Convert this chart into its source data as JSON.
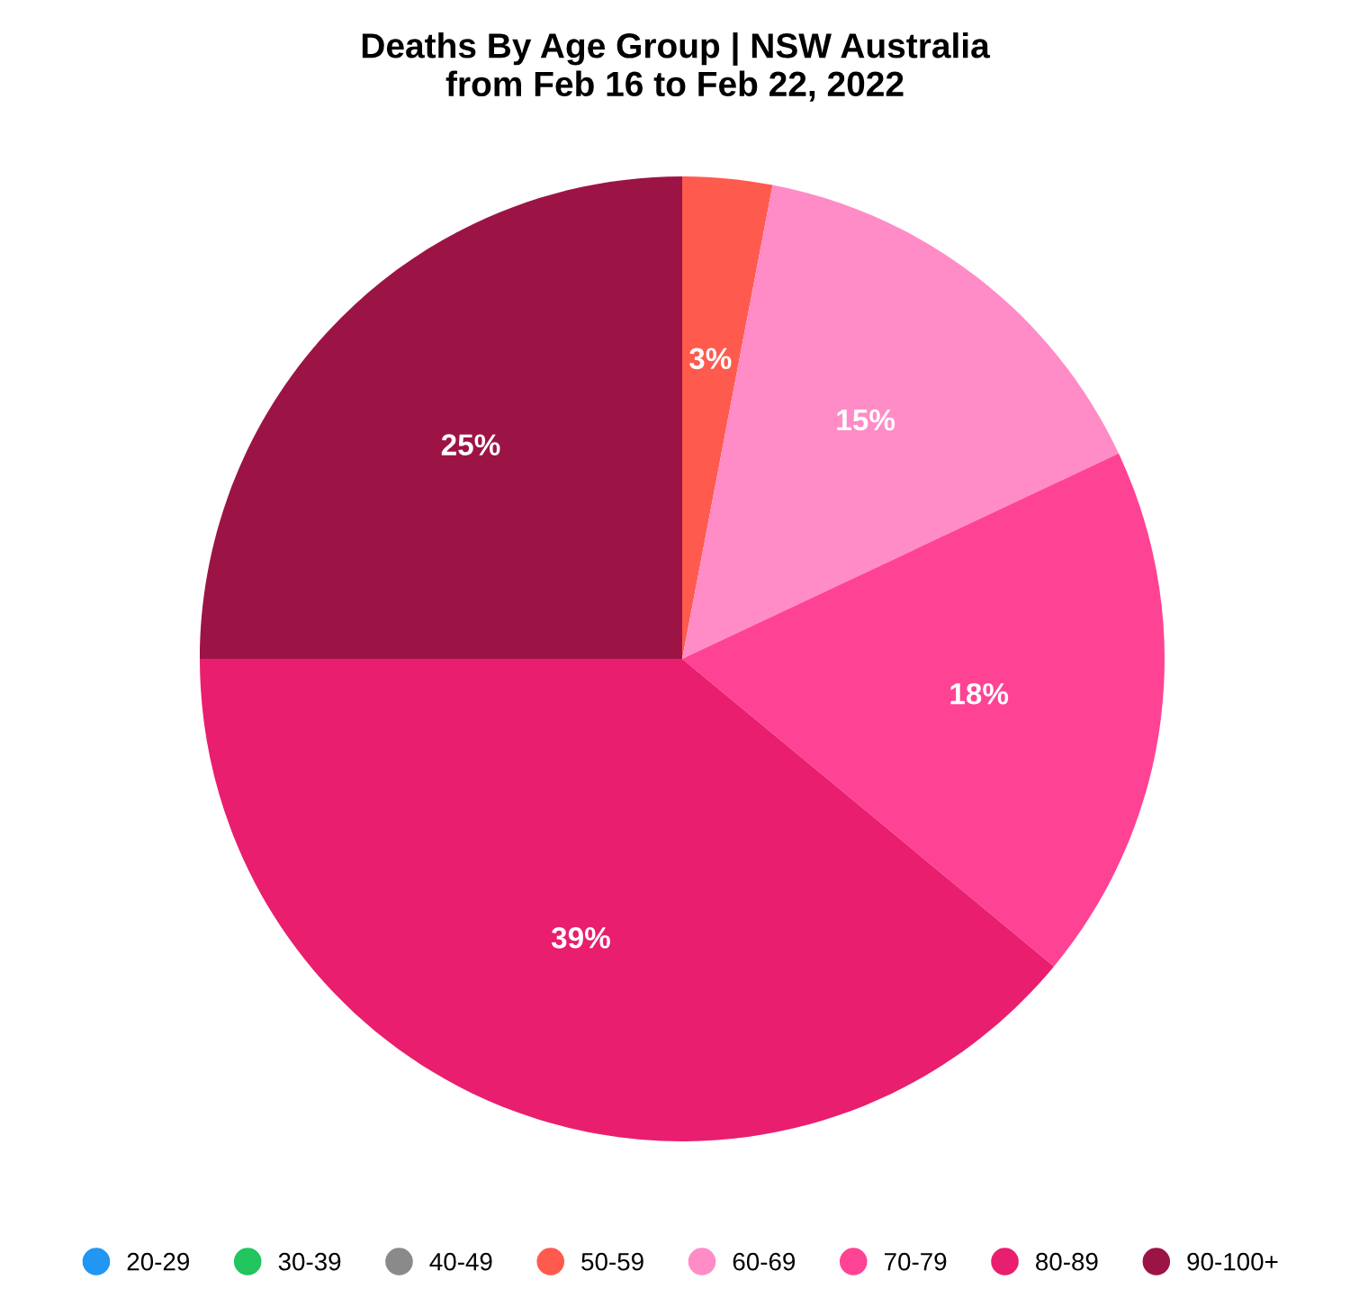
{
  "chart_data": {
    "type": "pie",
    "title": "Deaths By Age Group | NSW Australia\nfrom Feb 16 to Feb 22, 2022",
    "categories": [
      "20-29",
      "30-39",
      "40-49",
      "50-59",
      "60-69",
      "70-79",
      "80-89",
      "90-100+"
    ],
    "values": [
      0,
      0,
      0,
      3,
      15,
      18,
      39,
      25
    ],
    "value_labels": [
      null,
      null,
      null,
      "3%",
      "15%",
      "18%",
      "39%",
      "25%"
    ],
    "colors": [
      "#2196f3",
      "#22c55e",
      "#8a8a8a",
      "#ff5a4e",
      "#ff8cc6",
      "#ff4394",
      "#e91e6e",
      "#9c1446"
    ],
    "legend": "bottom"
  }
}
